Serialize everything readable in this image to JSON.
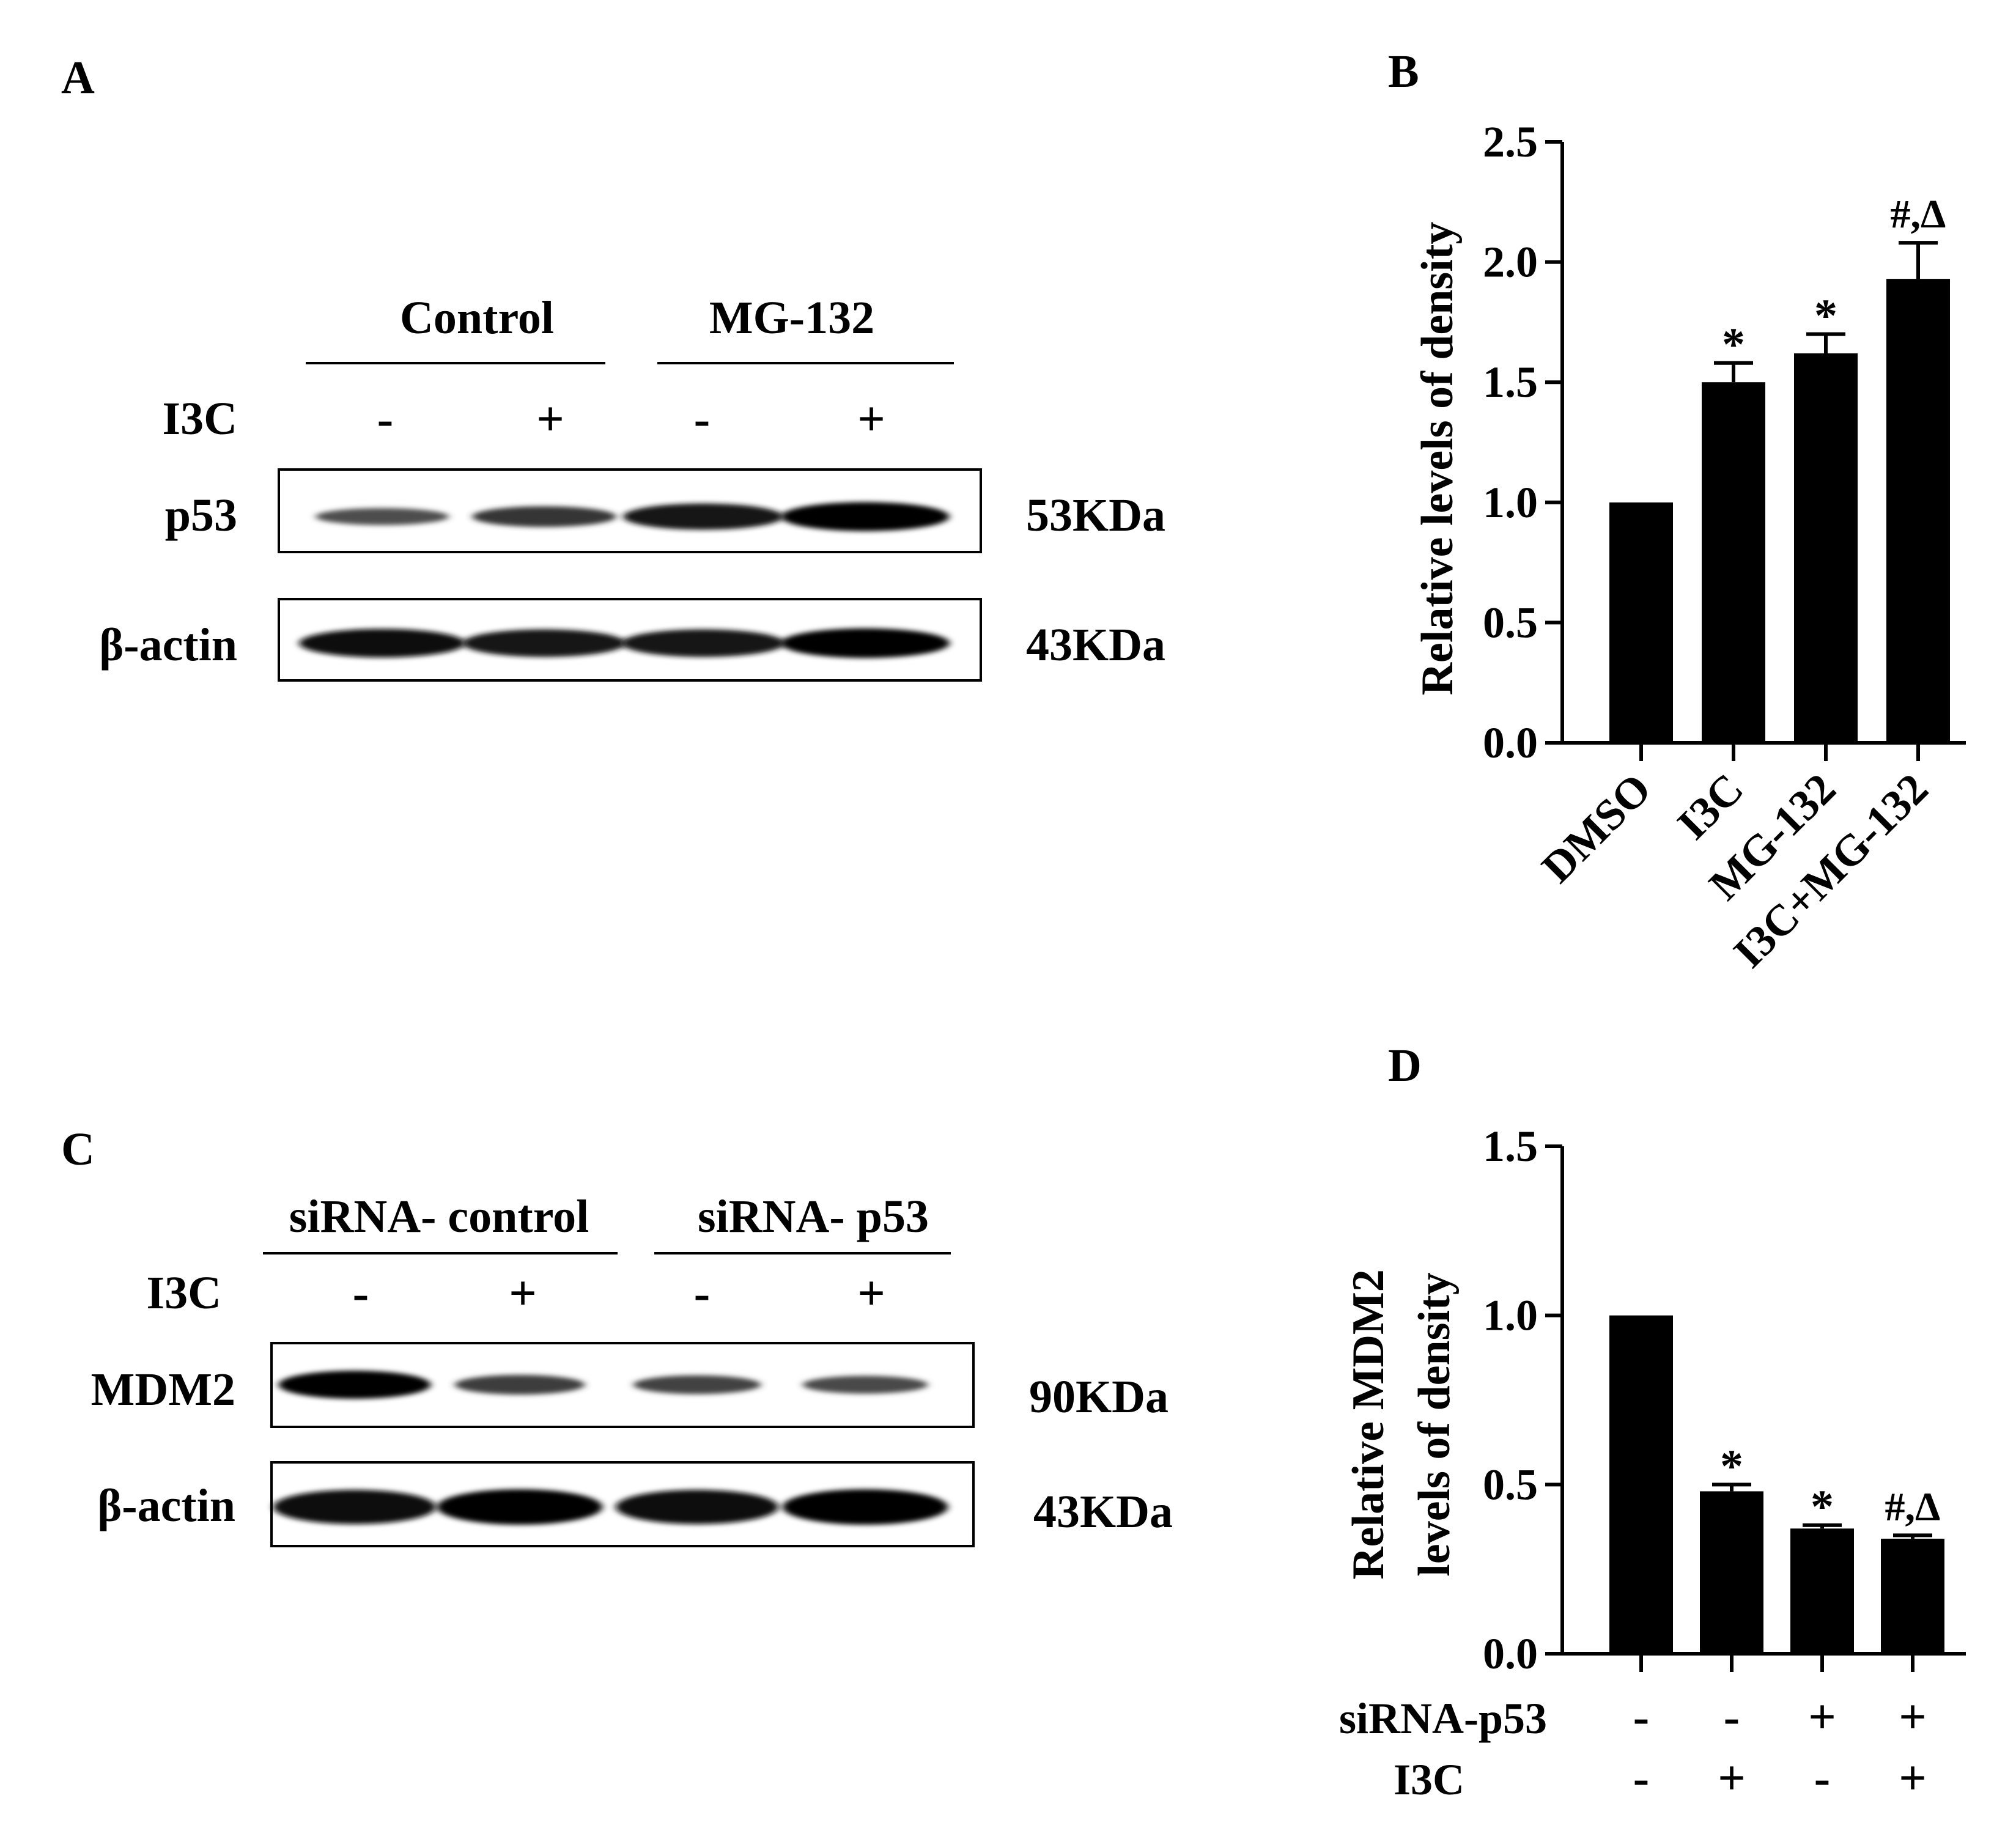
{
  "panels": {
    "a": "A",
    "b": "B",
    "c": "C",
    "d": "D"
  },
  "blot_a": {
    "group_labels": [
      "Control",
      "MG-132"
    ],
    "treatment_label": "I3C",
    "treatment_signs": [
      "-",
      "+",
      "-",
      "+"
    ],
    "rows": [
      {
        "label": "p53",
        "size": "53KDa",
        "band_intensity": [
          0.35,
          0.55,
          0.85,
          1.0
        ]
      },
      {
        "label": "β-actin",
        "size": "43KDa",
        "band_intensity": [
          0.9,
          0.85,
          0.85,
          0.95
        ]
      }
    ]
  },
  "blot_c": {
    "group_labels": [
      "siRNA- control",
      "siRNA- p53"
    ],
    "treatment_label": "I3C",
    "treatment_signs": [
      "-",
      "+",
      "-",
      "+"
    ],
    "rows": [
      {
        "label": "MDM2",
        "size": "90KDa",
        "band_intensity": [
          0.95,
          0.5,
          0.45,
          0.4
        ]
      },
      {
        "label": "β-actin",
        "size": "43KDa",
        "band_intensity": [
          0.9,
          0.95,
          0.9,
          0.95
        ]
      }
    ]
  },
  "chart_data": [
    {
      "type": "bar",
      "panel": "B",
      "ylabel": "Relative levels of density",
      "ylim": [
        0,
        2.5
      ],
      "yticks": [
        "0.0",
        "0.5",
        "1.0",
        "1.5",
        "2.0",
        "2.5"
      ],
      "categories": [
        "DMSO",
        "I3C",
        "MG-132",
        "I3C+MG-132"
      ],
      "values": [
        1.0,
        1.5,
        1.62,
        1.93
      ],
      "error": [
        0,
        0.08,
        0.08,
        0.15
      ],
      "annotations": [
        "",
        "*",
        "*",
        "#,Δ"
      ],
      "bar_color": "#000000"
    },
    {
      "type": "bar",
      "panel": "D",
      "ylabel_lines": [
        "Relative MDM2",
        "levels of density"
      ],
      "ylim": [
        0,
        1.5
      ],
      "yticks": [
        "0.0",
        "0.5",
        "1.0",
        "1.5"
      ],
      "values": [
        1.0,
        0.48,
        0.37,
        0.34
      ],
      "error": [
        0,
        0.02,
        0.01,
        0.01
      ],
      "annotations": [
        "",
        "*",
        "*",
        "#,Δ"
      ],
      "condition_rows": [
        {
          "label": "siRNA-p53",
          "signs": [
            "-",
            "-",
            "+",
            "+"
          ]
        },
        {
          "label": "I3C",
          "signs": [
            "-",
            "+",
            "-",
            "+"
          ]
        }
      ],
      "bar_color": "#000000"
    }
  ]
}
